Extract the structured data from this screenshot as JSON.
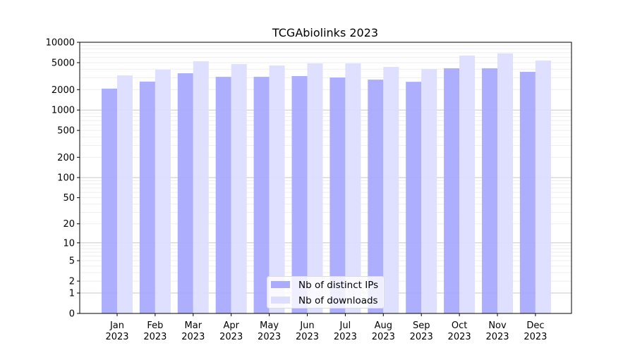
{
  "chart_data": {
    "type": "bar",
    "title": "TCGAbiolinks 2023",
    "xlabel": "",
    "ylabel": "",
    "yscale": "log(1+x)",
    "ylim": [
      0,
      10000
    ],
    "yticks": [
      0,
      1,
      2,
      5,
      10,
      20,
      50,
      100,
      200,
      500,
      1000,
      2000,
      5000,
      10000
    ],
    "grid": true,
    "legend_placement": "bottom-center",
    "categories": [
      "Jan\n2023",
      "Feb\n2023",
      "Mar\n2023",
      "Apr\n2023",
      "May\n2023",
      "Jun\n2023",
      "Jul\n2023",
      "Aug\n2023",
      "Sep\n2023",
      "Oct\n2023",
      "Nov\n2023",
      "Dec\n2023"
    ],
    "series": [
      {
        "name": "Nb of distinct IPs",
        "color": "#aaaaff",
        "values": [
          2070,
          2630,
          3490,
          3090,
          3090,
          3170,
          3020,
          2810,
          2610,
          4130,
          4130,
          3660
        ]
      },
      {
        "name": "Nb of downloads",
        "color": "#ddddff",
        "values": [
          3240,
          3930,
          5250,
          4770,
          4540,
          4880,
          4880,
          4330,
          4030,
          6360,
          6840,
          5370
        ]
      }
    ]
  }
}
